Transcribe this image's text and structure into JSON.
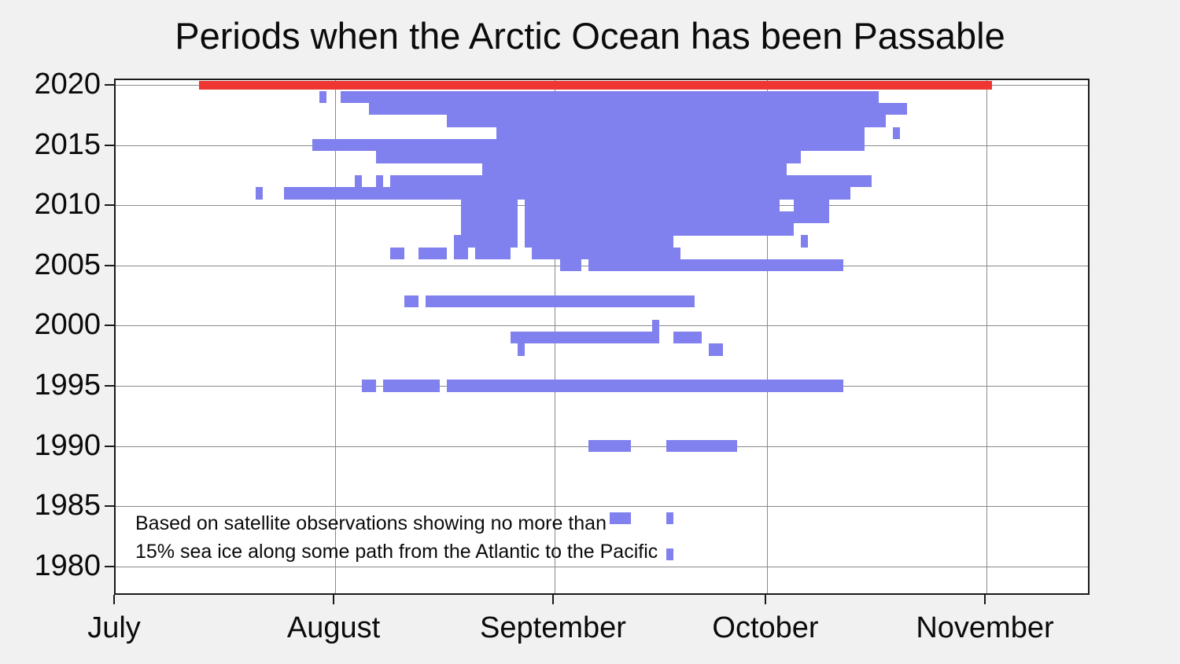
{
  "title": "Periods when the Arctic Ocean has been Passable",
  "annotation": {
    "line1": "Based on satellite observations showing no more than",
    "line2": "15% sea ice along some path from the Atlantic to the Pacific"
  },
  "colors": {
    "passable_bar": "#8080ee",
    "current_year_bar": "#ee3633",
    "plot_background": "#ffffff",
    "page_background": "#f1f1f1",
    "gridline": "#8a8a8a"
  },
  "chart_data": {
    "type": "bar",
    "subtype": "horizontal-timeline",
    "title": "Periods when the Arctic Ocean has been Passable",
    "xlabel": "",
    "ylabel": "",
    "grid": true,
    "legend": false,
    "x_axis": {
      "tick_labels": [
        "July",
        "August",
        "September",
        "October",
        "November"
      ],
      "tick_days_from_jul1": [
        0,
        31,
        62,
        92,
        123
      ],
      "range_days_from_jul1": [
        0,
        138
      ]
    },
    "y_axis": {
      "tick_labels": [
        "2020",
        "2015",
        "2010",
        "2005",
        "2000",
        "1995",
        "1990",
        "1985",
        "1980"
      ],
      "range_years": [
        1978,
        2021
      ]
    },
    "series": [
      {
        "year": 2020,
        "style": "current_year",
        "segments": [
          [
            "Jul 13",
            "Nov 2"
          ]
        ]
      },
      {
        "year": 2019,
        "style": "passable",
        "segments": [
          [
            "Jul 30",
            "Jul 31"
          ],
          [
            "Aug 2",
            "Oct 17"
          ]
        ]
      },
      {
        "year": 2018,
        "style": "passable",
        "segments": [
          [
            "Aug 6",
            "Oct 21"
          ]
        ]
      },
      {
        "year": 2017,
        "style": "passable",
        "segments": [
          [
            "Aug 17",
            "Oct 18"
          ]
        ]
      },
      {
        "year": 2016,
        "style": "passable",
        "segments": [
          [
            "Aug 24",
            "Oct 15"
          ],
          [
            "Oct 19",
            "Oct 20"
          ]
        ]
      },
      {
        "year": 2015,
        "style": "passable",
        "segments": [
          [
            "Jul 29",
            "Oct 15"
          ]
        ]
      },
      {
        "year": 2014,
        "style": "passable",
        "segments": [
          [
            "Aug 7",
            "Oct 6"
          ]
        ]
      },
      {
        "year": 2013,
        "style": "passable",
        "segments": [
          [
            "Aug 22",
            "Oct 4"
          ]
        ]
      },
      {
        "year": 2012,
        "style": "passable",
        "segments": [
          [
            "Aug 4",
            "Aug 5"
          ],
          [
            "Aug 7",
            "Aug 8"
          ],
          [
            "Aug 9",
            "Oct 16"
          ]
        ]
      },
      {
        "year": 2011,
        "style": "passable",
        "segments": [
          [
            "Jul 21",
            "Jul 22"
          ],
          [
            "Jul 25",
            "Oct 13"
          ]
        ]
      },
      {
        "year": 2010,
        "style": "passable",
        "segments": [
          [
            "Aug 19",
            "Aug 27"
          ],
          [
            "Aug 28",
            "Oct 3"
          ],
          [
            "Oct 5",
            "Oct 10"
          ]
        ]
      },
      {
        "year": 2009,
        "style": "passable",
        "segments": [
          [
            "Aug 19",
            "Aug 27"
          ],
          [
            "Aug 28",
            "Oct 10"
          ]
        ]
      },
      {
        "year": 2008,
        "style": "passable",
        "segments": [
          [
            "Aug 19",
            "Aug 27"
          ],
          [
            "Aug 28",
            "Oct 5"
          ]
        ]
      },
      {
        "year": 2007,
        "style": "passable",
        "segments": [
          [
            "Aug 18",
            "Aug 27"
          ],
          [
            "Aug 28",
            "Sep 18"
          ],
          [
            "Oct 6",
            "Oct 7"
          ]
        ]
      },
      {
        "year": 2006,
        "style": "passable",
        "segments": [
          [
            "Aug 9",
            "Aug 11"
          ],
          [
            "Aug 13",
            "Aug 17"
          ],
          [
            "Aug 18",
            "Aug 20"
          ],
          [
            "Aug 21",
            "Aug 26"
          ],
          [
            "Aug 29",
            "Sep 19"
          ]
        ]
      },
      {
        "year": 2005,
        "style": "passable",
        "segments": [
          [
            "Sep 2",
            "Sep 5"
          ],
          [
            "Sep 6",
            "Oct 12"
          ]
        ]
      },
      {
        "year": 2004,
        "style": "passable",
        "segments": []
      },
      {
        "year": 2003,
        "style": "passable",
        "segments": []
      },
      {
        "year": 2002,
        "style": "passable",
        "segments": [
          [
            "Aug 11",
            "Aug 13"
          ],
          [
            "Aug 14",
            "Sep 21"
          ]
        ]
      },
      {
        "year": 2001,
        "style": "passable",
        "segments": []
      },
      {
        "year": 2000,
        "style": "passable",
        "segments": [
          [
            "Sep 15",
            "Sep 16"
          ]
        ]
      },
      {
        "year": 1999,
        "style": "passable",
        "segments": [
          [
            "Aug 26",
            "Sep 16"
          ],
          [
            "Sep 18",
            "Sep 22"
          ]
        ]
      },
      {
        "year": 1998,
        "style": "passable",
        "segments": [
          [
            "Aug 27",
            "Aug 28"
          ],
          [
            "Sep 23",
            "Sep 25"
          ]
        ]
      },
      {
        "year": 1997,
        "style": "passable",
        "segments": []
      },
      {
        "year": 1996,
        "style": "passable",
        "segments": []
      },
      {
        "year": 1995,
        "style": "passable",
        "segments": [
          [
            "Aug 5",
            "Aug 7"
          ],
          [
            "Aug 8",
            "Aug 16"
          ],
          [
            "Aug 17",
            "Oct 12"
          ]
        ]
      },
      {
        "year": 1994,
        "style": "passable",
        "segments": []
      },
      {
        "year": 1993,
        "style": "passable",
        "segments": []
      },
      {
        "year": 1992,
        "style": "passable",
        "segments": []
      },
      {
        "year": 1991,
        "style": "passable",
        "segments": []
      },
      {
        "year": 1990,
        "style": "passable",
        "segments": [
          [
            "Sep 6",
            "Sep 12"
          ],
          [
            "Sep 17",
            "Sep 27"
          ]
        ]
      },
      {
        "year": 1989,
        "style": "passable",
        "segments": []
      },
      {
        "year": 1988,
        "style": "passable",
        "segments": []
      },
      {
        "year": 1987,
        "style": "passable",
        "segments": []
      },
      {
        "year": 1986,
        "style": "passable",
        "segments": []
      },
      {
        "year": 1985,
        "style": "passable",
        "segments": []
      },
      {
        "year": 1984,
        "style": "passable",
        "segments": [
          [
            "Sep 9",
            "Sep 12"
          ],
          [
            "Sep 17",
            "Sep 18"
          ]
        ]
      },
      {
        "year": 1983,
        "style": "passable",
        "segments": []
      },
      {
        "year": 1982,
        "style": "passable",
        "segments": []
      },
      {
        "year": 1981,
        "style": "passable",
        "segments": [
          [
            "Sep 17",
            "Sep 18"
          ]
        ]
      },
      {
        "year": 1980,
        "style": "passable",
        "segments": []
      },
      {
        "year": 1979,
        "style": "passable",
        "segments": []
      }
    ]
  }
}
